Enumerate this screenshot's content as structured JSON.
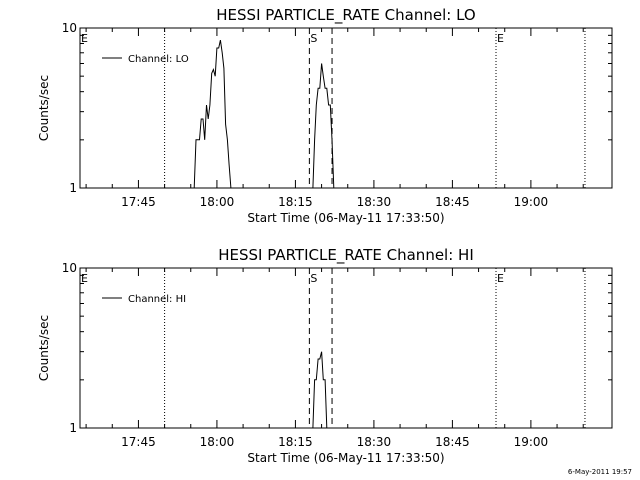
{
  "timestamp": "6-May-2011 19:57",
  "chart_data": [
    {
      "type": "line",
      "title": "HESSI PARTICLE_RATE Channel: LO",
      "xlabel": "Start Time (06-May-11 17:33:50)",
      "ylabel": "Counts/sec",
      "y_scale": "log",
      "ylim": [
        1,
        10
      ],
      "y_ticks": [
        {
          "value": 1,
          "label": "1"
        },
        {
          "value": 10,
          "label": "10"
        }
      ],
      "xlim": [
        "17:33:50",
        "19:15:30"
      ],
      "x_ticks": [
        "17:45",
        "18:00",
        "18:15",
        "18:30",
        "18:45",
        "19:00"
      ],
      "legend": {
        "position": "top-left",
        "entries": [
          "Channel: LO"
        ]
      },
      "grid": false,
      "series": [
        {
          "name": "Channel: LO",
          "x": [
            "17:55:40",
            "17:56:00",
            "17:56:20",
            "17:56:40",
            "17:57:00",
            "17:57:20",
            "17:57:40",
            "17:58:00",
            "17:58:20",
            "17:58:40",
            "17:59:00",
            "17:59:20",
            "17:59:40",
            "18:00:00",
            "18:00:20",
            "18:00:40",
            "18:01:00",
            "18:01:20",
            "18:01:40",
            "18:02:00",
            "18:02:20",
            "18:02:40"
          ],
          "values": [
            1,
            2.0,
            2.0,
            2.0,
            2.7,
            2.7,
            2.0,
            3.3,
            2.7,
            3.3,
            5.2,
            5.5,
            5.0,
            7.5,
            7.5,
            8.4,
            7.0,
            5.6,
            2.5,
            2.0,
            1.4,
            1
          ]
        },
        {
          "name": "Channel: LO",
          "x": [
            "18:18:20",
            "18:18:40",
            "18:19:00",
            "18:19:20",
            "18:19:40",
            "18:20:00",
            "18:20:20",
            "18:20:40",
            "18:21:00",
            "18:21:20",
            "18:21:40",
            "18:22:00",
            "18:22:20"
          ],
          "values": [
            1,
            2.0,
            3.3,
            4.2,
            4.2,
            6.0,
            5.0,
            4.2,
            4.2,
            3.3,
            3.3,
            2.0,
            1
          ]
        }
      ],
      "markers": [
        {
          "label": "E",
          "time": "17:33:50",
          "style": "dotted",
          "show_line": false
        },
        {
          "label": "",
          "time": "17:50:00",
          "style": "dotted",
          "show_line": true
        },
        {
          "label": "S",
          "time": "18:17:40",
          "style": "dashed",
          "show_line": true
        },
        {
          "label": "",
          "time": "18:22:00",
          "style": "dashed",
          "show_line": true
        },
        {
          "label": "E",
          "time": "18:53:20",
          "style": "dotted",
          "show_line": true
        },
        {
          "label": "",
          "time": "19:10:20",
          "style": "dotted",
          "show_line": true
        }
      ]
    },
    {
      "type": "line",
      "title": "HESSI PARTICLE_RATE Channel: HI",
      "xlabel": "Start Time (06-May-11 17:33:50)",
      "ylabel": "Counts/sec",
      "y_scale": "log",
      "ylim": [
        1,
        10
      ],
      "y_ticks": [
        {
          "value": 1,
          "label": "1"
        },
        {
          "value": 10,
          "label": "10"
        }
      ],
      "xlim": [
        "17:33:50",
        "19:15:30"
      ],
      "x_ticks": [
        "17:45",
        "18:00",
        "18:15",
        "18:30",
        "18:45",
        "19:00"
      ],
      "legend": {
        "position": "top-left",
        "entries": [
          "Channel: HI"
        ]
      },
      "grid": false,
      "series": [
        {
          "name": "Channel: HI",
          "x": [
            "18:18:20",
            "18:18:40",
            "18:19:00",
            "18:19:20",
            "18:19:40",
            "18:20:00",
            "18:20:20",
            "18:20:40",
            "18:21:00"
          ],
          "values": [
            1,
            2.0,
            2.0,
            2.7,
            2.7,
            3.0,
            2.0,
            2.0,
            1
          ]
        }
      ],
      "markers": [
        {
          "label": "E",
          "time": "17:33:50",
          "style": "dotted",
          "show_line": false
        },
        {
          "label": "",
          "time": "17:50:00",
          "style": "dotted",
          "show_line": true
        },
        {
          "label": "S",
          "time": "18:17:40",
          "style": "dashed",
          "show_line": true
        },
        {
          "label": "",
          "time": "18:22:00",
          "style": "dashed",
          "show_line": true
        },
        {
          "label": "E",
          "time": "18:53:20",
          "style": "dotted",
          "show_line": true
        },
        {
          "label": "",
          "time": "19:10:20",
          "style": "dotted",
          "show_line": true
        }
      ]
    }
  ]
}
